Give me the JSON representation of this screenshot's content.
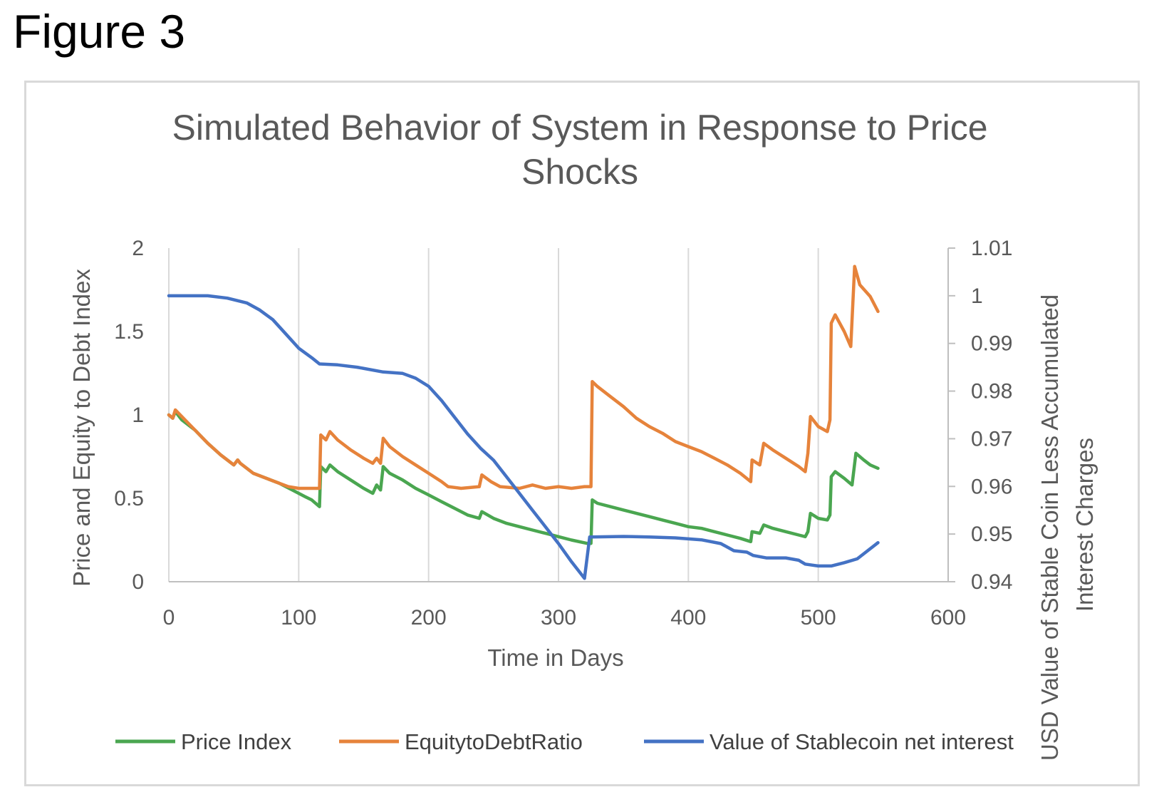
{
  "figure_label": "Figure 3",
  "chart_data": {
    "type": "line",
    "title_lines": [
      "Simulated Behavior of System in Response to Price",
      "Shocks"
    ],
    "xlabel": "Time in Days",
    "ylabel_left": "Price and Equity to Debt Index",
    "ylabel_right_lines": [
      "USD Value of Stable Coin Less Accumulated",
      "Interest Charges"
    ],
    "xlim": [
      0,
      600
    ],
    "ylim_left": [
      0,
      2
    ],
    "ylim_right": [
      0.94,
      1.01
    ],
    "x_ticks": [
      "0",
      "100",
      "200",
      "300",
      "400",
      "500",
      "600"
    ],
    "y_left_ticks": [
      "0",
      "0.5",
      "1",
      "1.5",
      "2"
    ],
    "y_right_ticks": [
      "0.94",
      "0.95",
      "0.96",
      "0.97",
      "0.98",
      "0.99",
      "1",
      "1.01"
    ],
    "grid": "vertical",
    "legend_position": "bottom",
    "series": [
      {
        "name": "Price Index",
        "axis": "left",
        "color": "#4aa650",
        "points": [
          [
            0,
            1.0
          ],
          [
            3,
            0.98
          ],
          [
            5,
            1.02
          ],
          [
            10,
            0.97
          ],
          [
            20,
            0.91
          ],
          [
            30,
            0.83
          ],
          [
            40,
            0.76
          ],
          [
            50,
            0.7
          ],
          [
            53,
            0.73
          ],
          [
            55,
            0.71
          ],
          [
            60,
            0.68
          ],
          [
            65,
            0.65
          ],
          [
            75,
            0.62
          ],
          [
            85,
            0.59
          ],
          [
            95,
            0.55
          ],
          [
            105,
            0.51
          ],
          [
            110,
            0.49
          ],
          [
            116,
            0.45
          ],
          [
            117,
            0.69
          ],
          [
            121,
            0.66
          ],
          [
            124,
            0.7
          ],
          [
            130,
            0.66
          ],
          [
            140,
            0.61
          ],
          [
            150,
            0.56
          ],
          [
            157,
            0.53
          ],
          [
            160,
            0.58
          ],
          [
            163,
            0.55
          ],
          [
            165,
            0.69
          ],
          [
            170,
            0.65
          ],
          [
            180,
            0.61
          ],
          [
            190,
            0.56
          ],
          [
            200,
            0.52
          ],
          [
            210,
            0.48
          ],
          [
            220,
            0.44
          ],
          [
            230,
            0.4
          ],
          [
            239,
            0.38
          ],
          [
            241,
            0.42
          ],
          [
            250,
            0.38
          ],
          [
            260,
            0.35
          ],
          [
            270,
            0.33
          ],
          [
            280,
            0.31
          ],
          [
            290,
            0.29
          ],
          [
            300,
            0.27
          ],
          [
            310,
            0.25
          ],
          [
            322,
            0.23
          ],
          [
            325,
            0.23
          ],
          [
            326,
            0.49
          ],
          [
            330,
            0.47
          ],
          [
            340,
            0.45
          ],
          [
            350,
            0.43
          ],
          [
            360,
            0.41
          ],
          [
            370,
            0.39
          ],
          [
            380,
            0.37
          ],
          [
            390,
            0.35
          ],
          [
            400,
            0.33
          ],
          [
            410,
            0.32
          ],
          [
            420,
            0.3
          ],
          [
            430,
            0.28
          ],
          [
            440,
            0.26
          ],
          [
            448,
            0.24
          ],
          [
            449,
            0.3
          ],
          [
            455,
            0.29
          ],
          [
            458,
            0.34
          ],
          [
            465,
            0.32
          ],
          [
            475,
            0.3
          ],
          [
            485,
            0.28
          ],
          [
            490,
            0.27
          ],
          [
            492,
            0.3
          ],
          [
            494,
            0.41
          ],
          [
            500,
            0.38
          ],
          [
            507,
            0.37
          ],
          [
            509,
            0.4
          ],
          [
            510,
            0.63
          ],
          [
            513,
            0.66
          ],
          [
            520,
            0.62
          ],
          [
            526,
            0.58
          ],
          [
            529,
            0.77
          ],
          [
            535,
            0.73
          ],
          [
            540,
            0.7
          ],
          [
            546,
            0.68
          ]
        ]
      },
      {
        "name": "EquitytoDebtRatio",
        "axis": "left",
        "color": "#e6833b",
        "points": [
          [
            0,
            1.0
          ],
          [
            3,
            0.98
          ],
          [
            5,
            1.03
          ],
          [
            10,
            0.99
          ],
          [
            20,
            0.91
          ],
          [
            30,
            0.83
          ],
          [
            40,
            0.76
          ],
          [
            50,
            0.7
          ],
          [
            53,
            0.73
          ],
          [
            55,
            0.71
          ],
          [
            60,
            0.68
          ],
          [
            65,
            0.65
          ],
          [
            75,
            0.62
          ],
          [
            85,
            0.59
          ],
          [
            92,
            0.57
          ],
          [
            100,
            0.56
          ],
          [
            110,
            0.56
          ],
          [
            116,
            0.56
          ],
          [
            117,
            0.88
          ],
          [
            121,
            0.85
          ],
          [
            124,
            0.9
          ],
          [
            130,
            0.85
          ],
          [
            140,
            0.79
          ],
          [
            150,
            0.74
          ],
          [
            157,
            0.71
          ],
          [
            160,
            0.74
          ],
          [
            163,
            0.71
          ],
          [
            165,
            0.86
          ],
          [
            170,
            0.81
          ],
          [
            180,
            0.75
          ],
          [
            190,
            0.7
          ],
          [
            200,
            0.65
          ],
          [
            210,
            0.6
          ],
          [
            215,
            0.57
          ],
          [
            225,
            0.56
          ],
          [
            239,
            0.57
          ],
          [
            241,
            0.64
          ],
          [
            248,
            0.6
          ],
          [
            255,
            0.57
          ],
          [
            270,
            0.56
          ],
          [
            280,
            0.58
          ],
          [
            290,
            0.56
          ],
          [
            300,
            0.57
          ],
          [
            310,
            0.56
          ],
          [
            320,
            0.57
          ],
          [
            325,
            0.57
          ],
          [
            326,
            1.2
          ],
          [
            330,
            1.17
          ],
          [
            340,
            1.11
          ],
          [
            350,
            1.05
          ],
          [
            360,
            0.98
          ],
          [
            370,
            0.93
          ],
          [
            380,
            0.89
          ],
          [
            390,
            0.84
          ],
          [
            400,
            0.81
          ],
          [
            410,
            0.78
          ],
          [
            420,
            0.74
          ],
          [
            430,
            0.7
          ],
          [
            440,
            0.65
          ],
          [
            448,
            0.6
          ],
          [
            449,
            0.73
          ],
          [
            455,
            0.7
          ],
          [
            458,
            0.83
          ],
          [
            465,
            0.79
          ],
          [
            475,
            0.74
          ],
          [
            485,
            0.69
          ],
          [
            490,
            0.66
          ],
          [
            492,
            0.77
          ],
          [
            494,
            0.99
          ],
          [
            500,
            0.93
          ],
          [
            507,
            0.9
          ],
          [
            509,
            0.97
          ],
          [
            510,
            1.55
          ],
          [
            513,
            1.6
          ],
          [
            520,
            1.5
          ],
          [
            525,
            1.41
          ],
          [
            528,
            1.89
          ],
          [
            532,
            1.78
          ],
          [
            540,
            1.71
          ],
          [
            546,
            1.62
          ]
        ]
      },
      {
        "name": "Value of Stablecoin net interest",
        "axis": "right",
        "color": "#4472c4",
        "points": [
          [
            0,
            1.0
          ],
          [
            30,
            1.0
          ],
          [
            45,
            0.9995
          ],
          [
            60,
            0.9985
          ],
          [
            70,
            0.997
          ],
          [
            80,
            0.995
          ],
          [
            90,
            0.992
          ],
          [
            100,
            0.989
          ],
          [
            110,
            0.987
          ],
          [
            116,
            0.9857
          ],
          [
            130,
            0.9855
          ],
          [
            145,
            0.985
          ],
          [
            165,
            0.984
          ],
          [
            180,
            0.9837
          ],
          [
            190,
            0.9827
          ],
          [
            200,
            0.981
          ],
          [
            210,
            0.978
          ],
          [
            220,
            0.9745
          ],
          [
            230,
            0.971
          ],
          [
            240,
            0.968
          ],
          [
            250,
            0.9655
          ],
          [
            260,
            0.962
          ],
          [
            270,
            0.9585
          ],
          [
            280,
            0.955
          ],
          [
            290,
            0.9515
          ],
          [
            300,
            0.948
          ],
          [
            310,
            0.9442
          ],
          [
            320,
            0.9407
          ],
          [
            324,
            0.9494
          ],
          [
            325,
            0.9494
          ],
          [
            350,
            0.9495
          ],
          [
            370,
            0.9494
          ],
          [
            390,
            0.9492
          ],
          [
            410,
            0.9488
          ],
          [
            425,
            0.948
          ],
          [
            435,
            0.9465
          ],
          [
            445,
            0.9462
          ],
          [
            450,
            0.9455
          ],
          [
            460,
            0.945
          ],
          [
            475,
            0.945
          ],
          [
            485,
            0.9445
          ],
          [
            490,
            0.9437
          ],
          [
            500,
            0.9433
          ],
          [
            510,
            0.9433
          ],
          [
            520,
            0.944
          ],
          [
            530,
            0.9448
          ],
          [
            546,
            0.9482
          ]
        ]
      }
    ]
  }
}
